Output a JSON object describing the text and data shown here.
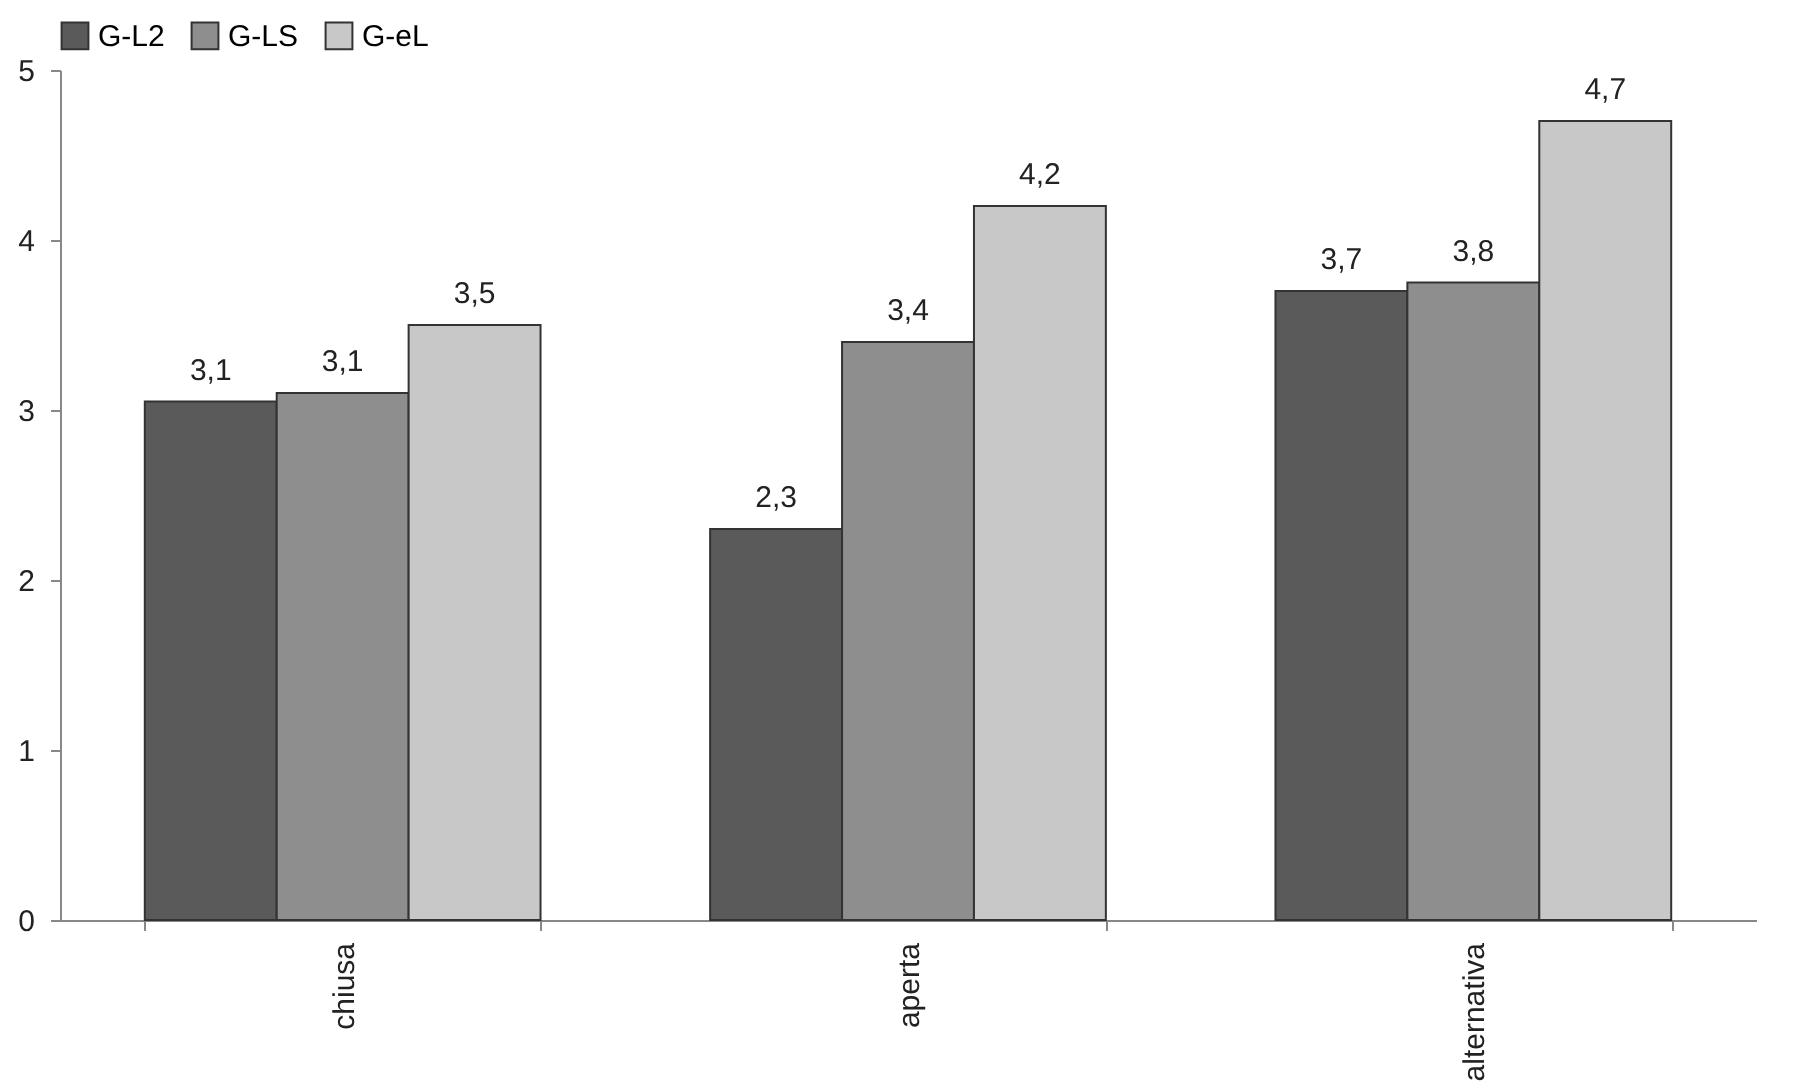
{
  "chart_data": {
    "type": "bar",
    "categories": [
      "chiusa",
      "aperta",
      "alternativa"
    ],
    "series": [
      {
        "name": "G-L2",
        "color": "#5a5a5a",
        "values": [
          3.05,
          2.3,
          3.7
        ],
        "value_labels": [
          "3,1",
          "2,3",
          "3,7"
        ]
      },
      {
        "name": "G-LS",
        "color": "#8e8e8e",
        "values": [
          3.1,
          3.4,
          3.75
        ],
        "value_labels": [
          "3,1",
          "3,4",
          "3,8"
        ]
      },
      {
        "name": "G-eL",
        "color": "#c8c8c8",
        "values": [
          3.5,
          4.2,
          4.7
        ],
        "value_labels": [
          "3,5",
          "4,2",
          "4,7"
        ]
      }
    ],
    "ylim": [
      0,
      5
    ],
    "yticks": [
      0,
      1,
      2,
      3,
      4,
      5
    ],
    "grid": false,
    "legend": "top"
  }
}
